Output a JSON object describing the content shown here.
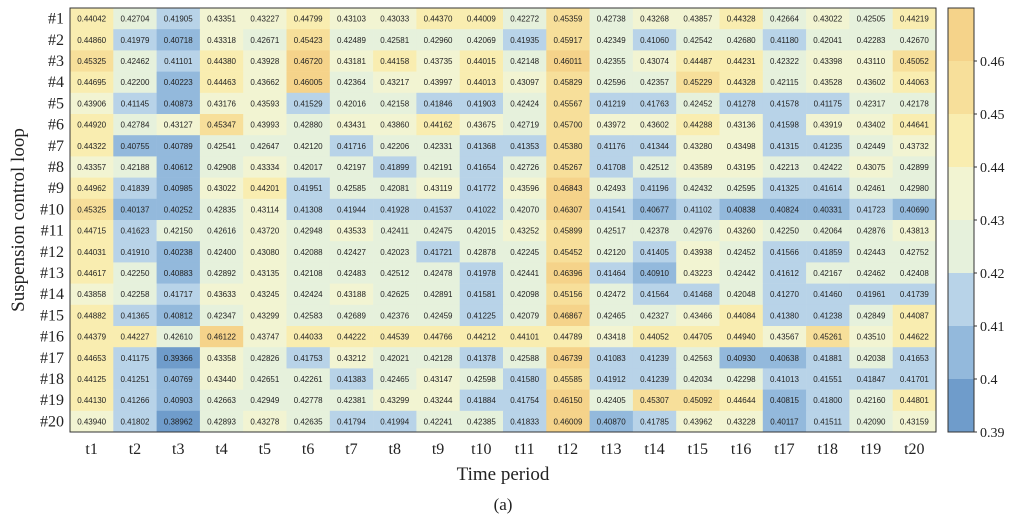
{
  "chart_data": {
    "type": "heatmap",
    "title": "",
    "caption": "(a)",
    "xlabel": "Time period",
    "ylabel": "Suspension control loop",
    "x_categories": [
      "t1",
      "t2",
      "t3",
      "t4",
      "t5",
      "t6",
      "t7",
      "t8",
      "t9",
      "t10",
      "t11",
      "t12",
      "t13",
      "t14",
      "t15",
      "t16",
      "t17",
      "t18",
      "t19",
      "t20"
    ],
    "y_categories": [
      "#1",
      "#2",
      "#3",
      "#4",
      "#5",
      "#6",
      "#7",
      "#8",
      "#9",
      "#10",
      "#11",
      "#12",
      "#13",
      "#14",
      "#15",
      "#16",
      "#17",
      "#18",
      "#19",
      "#20"
    ],
    "colorbar": {
      "range": [
        0.39,
        0.47
      ],
      "ticks": [
        "0.39",
        "0.4",
        "0.41",
        "0.42",
        "0.43",
        "0.44",
        "0.45",
        "0.46"
      ],
      "bands": [
        {
          "from": 0.39,
          "to": 0.4,
          "color": "#6f9ccb"
        },
        {
          "from": 0.4,
          "to": 0.41,
          "color": "#93b9dc"
        },
        {
          "from": 0.41,
          "to": 0.42,
          "color": "#b8d3e8"
        },
        {
          "from": 0.42,
          "to": 0.43,
          "color": "#e6f1dc"
        },
        {
          "from": 0.43,
          "to": 0.44,
          "color": "#f2f4d2"
        },
        {
          "from": 0.44,
          "to": 0.45,
          "color": "#f9edb0"
        },
        {
          "from": 0.45,
          "to": 0.46,
          "color": "#f7df9a"
        },
        {
          "from": 0.46,
          "to": 0.47,
          "color": "#f5d38a"
        }
      ]
    },
    "values": [
      [
        "0.44042",
        "0.42704",
        "0.41905",
        "0.43351",
        "0.43227",
        "0.44799",
        "0.43103",
        "0.43033",
        "0.44370",
        "0.44009",
        "0.42272",
        "0.45359",
        "0.42738",
        "0.43268",
        "0.43857",
        "0.44328",
        "0.42664",
        "0.43022",
        "0.42505",
        "0.44219"
      ],
      [
        "0.44860",
        "0.41979",
        "0.40718",
        "0.43318",
        "0.42671",
        "0.45423",
        "0.42489",
        "0.42581",
        "0.42960",
        "0.42069",
        "0.41935",
        "0.45917",
        "0.42349",
        "0.41060",
        "0.42542",
        "0.42680",
        "0.41180",
        "0.42041",
        "0.42283",
        "0.42670"
      ],
      [
        "0.45325",
        "0.42462",
        "0.41101",
        "0.44380",
        "0.43928",
        "0.46720",
        "0.43181",
        "0.44158",
        "0.43735",
        "0.44015",
        "0.42148",
        "0.46011",
        "0.42355",
        "0.43074",
        "0.44487",
        "0.44231",
        "0.42322",
        "0.43398",
        "0.43110",
        "0.45052"
      ],
      [
        "0.44695",
        "0.42200",
        "0.40223",
        "0.44463",
        "0.43662",
        "0.46005",
        "0.42364",
        "0.43217",
        "0.43997",
        "0.44013",
        "0.43097",
        "0.45829",
        "0.42596",
        "0.42357",
        "0.45229",
        "0.44328",
        "0.42115",
        "0.43528",
        "0.43602",
        "0.44063"
      ],
      [
        "0.43906",
        "0.41145",
        "0.40873",
        "0.43176",
        "0.43593",
        "0.41529",
        "0.42016",
        "0.42158",
        "0.41846",
        "0.41903",
        "0.42424",
        "0.45567",
        "0.41219",
        "0.41763",
        "0.42452",
        "0.41278",
        "0.41578",
        "0.41175",
        "0.42317",
        "0.42178"
      ],
      [
        "0.44920",
        "0.42784",
        "0.43127",
        "0.45347",
        "0.43993",
        "0.42880",
        "0.43431",
        "0.43860",
        "0.44162",
        "0.43675",
        "0.42719",
        "0.45700",
        "0.43972",
        "0.43602",
        "0.44288",
        "0.43136",
        "0.41598",
        "0.43919",
        "0.43402",
        "0.44641"
      ],
      [
        "0.44322",
        "0.40755",
        "0.40789",
        "0.42541",
        "0.42647",
        "0.42120",
        "0.41716",
        "0.42206",
        "0.42331",
        "0.41368",
        "0.41353",
        "0.45380",
        "0.41176",
        "0.41344",
        "0.43280",
        "0.43498",
        "0.41315",
        "0.41235",
        "0.42449",
        "0.43732"
      ],
      [
        "0.43357",
        "0.42188",
        "0.40612",
        "0.42908",
        "0.43334",
        "0.42017",
        "0.42197",
        "0.41899",
        "0.42191",
        "0.41654",
        "0.42726",
        "0.45267",
        "0.41708",
        "0.42512",
        "0.43589",
        "0.43195",
        "0.42213",
        "0.42422",
        "0.43075",
        "0.42899"
      ],
      [
        "0.44962",
        "0.41839",
        "0.40985",
        "0.43022",
        "0.44201",
        "0.41951",
        "0.42585",
        "0.42081",
        "0.43119",
        "0.41772",
        "0.43596",
        "0.46843",
        "0.42493",
        "0.41196",
        "0.42432",
        "0.42595",
        "0.41325",
        "0.41614",
        "0.42461",
        "0.42980"
      ],
      [
        "0.45325",
        "0.40137",
        "0.40252",
        "0.42835",
        "0.43114",
        "0.41308",
        "0.41944",
        "0.41928",
        "0.41537",
        "0.41022",
        "0.42070",
        "0.46307",
        "0.41541",
        "0.40677",
        "0.41102",
        "0.40838",
        "0.40824",
        "0.40331",
        "0.41723",
        "0.40690"
      ],
      [
        "0.44715",
        "0.41623",
        "0.42150",
        "0.42616",
        "0.43720",
        "0.42948",
        "0.43533",
        "0.42411",
        "0.42475",
        "0.42015",
        "0.43252",
        "0.45899",
        "0.42517",
        "0.42378",
        "0.42976",
        "0.43260",
        "0.42250",
        "0.42064",
        "0.42876",
        "0.43813"
      ],
      [
        "0.44031",
        "0.41910",
        "0.40238",
        "0.42400",
        "0.43080",
        "0.42088",
        "0.42427",
        "0.42023",
        "0.41721",
        "0.42878",
        "0.42245",
        "0.45452",
        "0.42120",
        "0.41405",
        "0.43938",
        "0.42452",
        "0.41566",
        "0.41859",
        "0.42443",
        "0.42752"
      ],
      [
        "0.44617",
        "0.42250",
        "0.40883",
        "0.42892",
        "0.43135",
        "0.42108",
        "0.42483",
        "0.42512",
        "0.42478",
        "0.41978",
        "0.42441",
        "0.46396",
        "0.41464",
        "0.40910",
        "0.43223",
        "0.42442",
        "0.41612",
        "0.42167",
        "0.42462",
        "0.42408"
      ],
      [
        "0.43858",
        "0.42258",
        "0.41717",
        "0.43633",
        "0.43245",
        "0.42424",
        "0.43188",
        "0.42625",
        "0.42891",
        "0.41581",
        "0.42098",
        "0.45156",
        "0.42472",
        "0.41564",
        "0.41468",
        "0.42048",
        "0.41270",
        "0.41460",
        "0.41961",
        "0.41739"
      ],
      [
        "0.44882",
        "0.41365",
        "0.40812",
        "0.42347",
        "0.43299",
        "0.42583",
        "0.42689",
        "0.42376",
        "0.42459",
        "0.41225",
        "0.42079",
        "0.46867",
        "0.42465",
        "0.42327",
        "0.43466",
        "0.44084",
        "0.41380",
        "0.41238",
        "0.42849",
        "0.44087"
      ],
      [
        "0.44379",
        "0.44227",
        "0.42610",
        "0.46122",
        "0.43747",
        "0.44033",
        "0.44222",
        "0.44539",
        "0.44766",
        "0.44212",
        "0.44101",
        "0.44789",
        "0.43418",
        "0.44052",
        "0.44705",
        "0.44940",
        "0.43567",
        "0.45261",
        "0.43510",
        "0.44622"
      ],
      [
        "0.44653",
        "0.41175",
        "0.39366",
        "0.43358",
        "0.42826",
        "0.41753",
        "0.43212",
        "0.42021",
        "0.42128",
        "0.41378",
        "0.42588",
        "0.46739",
        "0.41083",
        "0.41239",
        "0.42563",
        "0.40930",
        "0.40638",
        "0.41881",
        "0.42038",
        "0.41653"
      ],
      [
        "0.44125",
        "0.41251",
        "0.40769",
        "0.43440",
        "0.42651",
        "0.42261",
        "0.41383",
        "0.42465",
        "0.43147",
        "0.42598",
        "0.41580",
        "0.45585",
        "0.41912",
        "0.41239",
        "0.42034",
        "0.42298",
        "0.41013",
        "0.41551",
        "0.41847",
        "0.41701"
      ],
      [
        "0.44130",
        "0.41266",
        "0.40903",
        "0.42663",
        "0.42949",
        "0.42778",
        "0.42381",
        "0.43299",
        "0.43244",
        "0.41884",
        "0.41754",
        "0.46150",
        "0.42405",
        "0.45307",
        "0.45092",
        "0.44644",
        "0.40815",
        "0.41800",
        "0.42160",
        "0.44801"
      ],
      [
        "0.43940",
        "0.41802",
        "0.38962",
        "0.42893",
        "0.43278",
        "0.42635",
        "0.41794",
        "0.41994",
        "0.42241",
        "0.42385",
        "0.41833",
        "0.46009",
        "0.40870",
        "0.41785",
        "0.43962",
        "0.43228",
        "0.40117",
        "0.41511",
        "0.42090",
        "0.43159"
      ]
    ]
  }
}
